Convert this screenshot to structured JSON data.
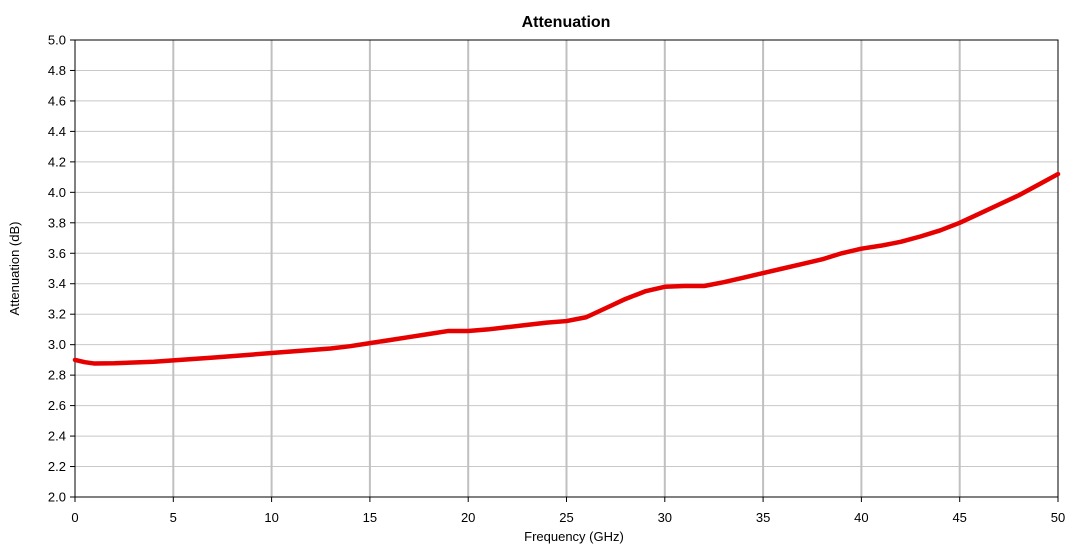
{
  "chart_data": {
    "type": "line",
    "title": "Attenuation",
    "xlabel": "Frequency (GHz)",
    "ylabel": "Attenuation (dB)",
    "xlim": [
      0,
      50
    ],
    "ylim": [
      2.0,
      5.0
    ],
    "x_ticks": [
      "0",
      "5",
      "10",
      "15",
      "20",
      "25",
      "30",
      "35",
      "40",
      "45",
      "50"
    ],
    "y_ticks": [
      "2.0",
      "2.2",
      "2.4",
      "2.6",
      "2.8",
      "3.0",
      "3.2",
      "3.4",
      "3.6",
      "3.8",
      "4.0",
      "4.2",
      "4.4",
      "4.6",
      "4.8",
      "5.0"
    ],
    "grid": {
      "vertical": true,
      "horizontal": true
    },
    "colors": {
      "series": "#e60000",
      "grid_vertical": "#c0c0c0",
      "grid_horizontal": "#c8c8c8",
      "frame": "#000000"
    },
    "series": [
      {
        "x": [
          0,
          0.5,
          1,
          2,
          3,
          4,
          5,
          6,
          7,
          8,
          9,
          10,
          11,
          12,
          13,
          14,
          15,
          16,
          17,
          18,
          19,
          20,
          21,
          22,
          23,
          24,
          25,
          26,
          27,
          28,
          29,
          30,
          31,
          32,
          33,
          34,
          35,
          36,
          37,
          38,
          39,
          40,
          41,
          42,
          43,
          44,
          45,
          46,
          47,
          48,
          49,
          50
        ],
        "y": [
          2.9,
          2.885,
          2.876,
          2.878,
          2.883,
          2.888,
          2.897,
          2.906,
          2.915,
          2.925,
          2.935,
          2.945,
          2.955,
          2.965,
          2.975,
          2.99,
          3.01,
          3.03,
          3.05,
          3.07,
          3.09,
          3.09,
          3.1,
          3.115,
          3.13,
          3.145,
          3.155,
          3.18,
          3.24,
          3.3,
          3.35,
          3.38,
          3.385,
          3.385,
          3.41,
          3.44,
          3.47,
          3.5,
          3.53,
          3.56,
          3.6,
          3.63,
          3.65,
          3.675,
          3.71,
          3.75,
          3.8,
          3.86,
          3.92,
          3.98,
          4.05,
          4.12
        ]
      }
    ]
  }
}
